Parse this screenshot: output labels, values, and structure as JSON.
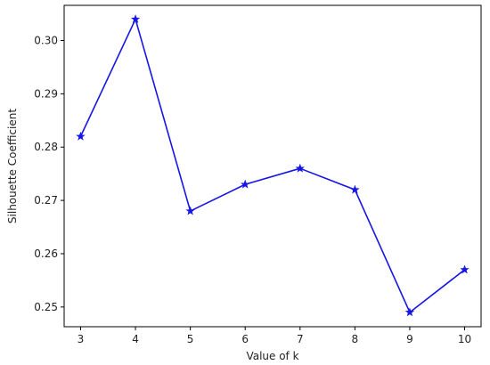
{
  "chart_data": {
    "type": "line",
    "title": "",
    "xlabel": "Value of k",
    "ylabel": "Silhouette Coefficient",
    "x": [
      3,
      4,
      5,
      6,
      7,
      8,
      9,
      10
    ],
    "xlim": [
      2.7,
      10.3
    ],
    "ylim": [
      0.2463,
      0.3066
    ],
    "x_ticks": [
      "3",
      "4",
      "5",
      "6",
      "7",
      "8",
      "9",
      "10"
    ],
    "y_ticks": [
      0.25,
      0.26,
      0.27,
      0.28,
      0.29,
      0.3
    ],
    "y_tick_labels": [
      "0.25",
      "0.26",
      "0.27",
      "0.28",
      "0.29",
      "0.30"
    ],
    "grid": false,
    "series": [
      {
        "color": "#1515e6",
        "marker": "star",
        "values": [
          0.282,
          0.304,
          0.268,
          0.273,
          0.276,
          0.272,
          0.249,
          0.257
        ]
      }
    ]
  }
}
